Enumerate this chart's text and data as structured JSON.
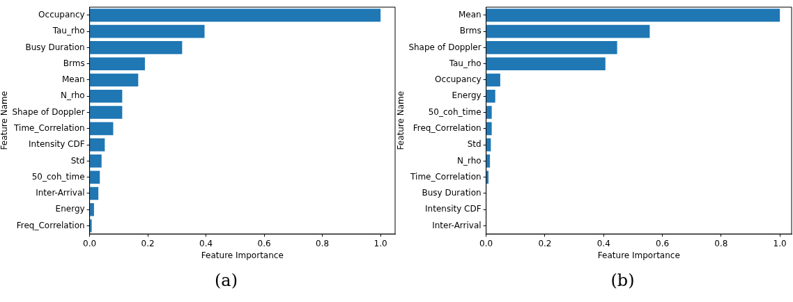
{
  "chart_data": [
    {
      "type": "bar",
      "orientation": "horizontal",
      "xlabel": "Feature Importance",
      "ylabel": "Feature Name",
      "color": "#1f77b4",
      "grid": false,
      "annotations": [
        "(a)"
      ],
      "categories": [
        "Occupancy",
        "Tau_rho",
        "Busy Duration",
        "Brms",
        "Mean",
        "N_rho",
        "Shape of Doppler",
        "Time_Correlation",
        "Intensity CDF",
        "Std",
        "50_coh_time",
        "Inter-Arrival",
        "Energy",
        "Freq_Correlation"
      ],
      "values": [
        1.0,
        0.395,
        0.318,
        0.19,
        0.167,
        0.112,
        0.112,
        0.081,
        0.052,
        0.041,
        0.035,
        0.03,
        0.015,
        0.007
      ],
      "xlim": [
        0,
        1.05
      ],
      "xticks": [
        {
          "value": 0,
          "label": "0.0"
        },
        {
          "value": 0.2,
          "label": "0.2"
        },
        {
          "value": 0.4,
          "label": "0.4"
        },
        {
          "value": 0.6,
          "label": "0.6"
        },
        {
          "value": 0.8,
          "label": "0.8"
        },
        {
          "value": 1,
          "label": "1.0"
        }
      ]
    },
    {
      "type": "bar",
      "orientation": "horizontal",
      "xlabel": "Feature Importance",
      "ylabel": "Feature Name",
      "color": "#1f77b4",
      "grid": false,
      "annotations": [
        "(b)"
      ],
      "categories": [
        "Mean",
        "Brms",
        "Shape of Doppler",
        "Tau_rho",
        "Occupancy",
        "Energy",
        "50_coh_time",
        "Freq_Correlation",
        "Std",
        "N_rho",
        "Time_Correlation",
        "Busy Duration",
        "Intensity CDF",
        "Inter-Arrival"
      ],
      "values": [
        1.0,
        0.557,
        0.446,
        0.406,
        0.048,
        0.031,
        0.019,
        0.019,
        0.016,
        0.013,
        0.008,
        0,
        0,
        0
      ],
      "xlim": [
        0,
        1.04
      ],
      "xticks": [
        {
          "value": 0,
          "label": "0.0"
        },
        {
          "value": 0.2,
          "label": "0.2"
        },
        {
          "value": 0.4,
          "label": "0.4"
        },
        {
          "value": 0.6,
          "label": "0.6"
        },
        {
          "value": 0.8,
          "label": "0.8"
        },
        {
          "value": 1,
          "label": "1.0"
        }
      ]
    }
  ]
}
